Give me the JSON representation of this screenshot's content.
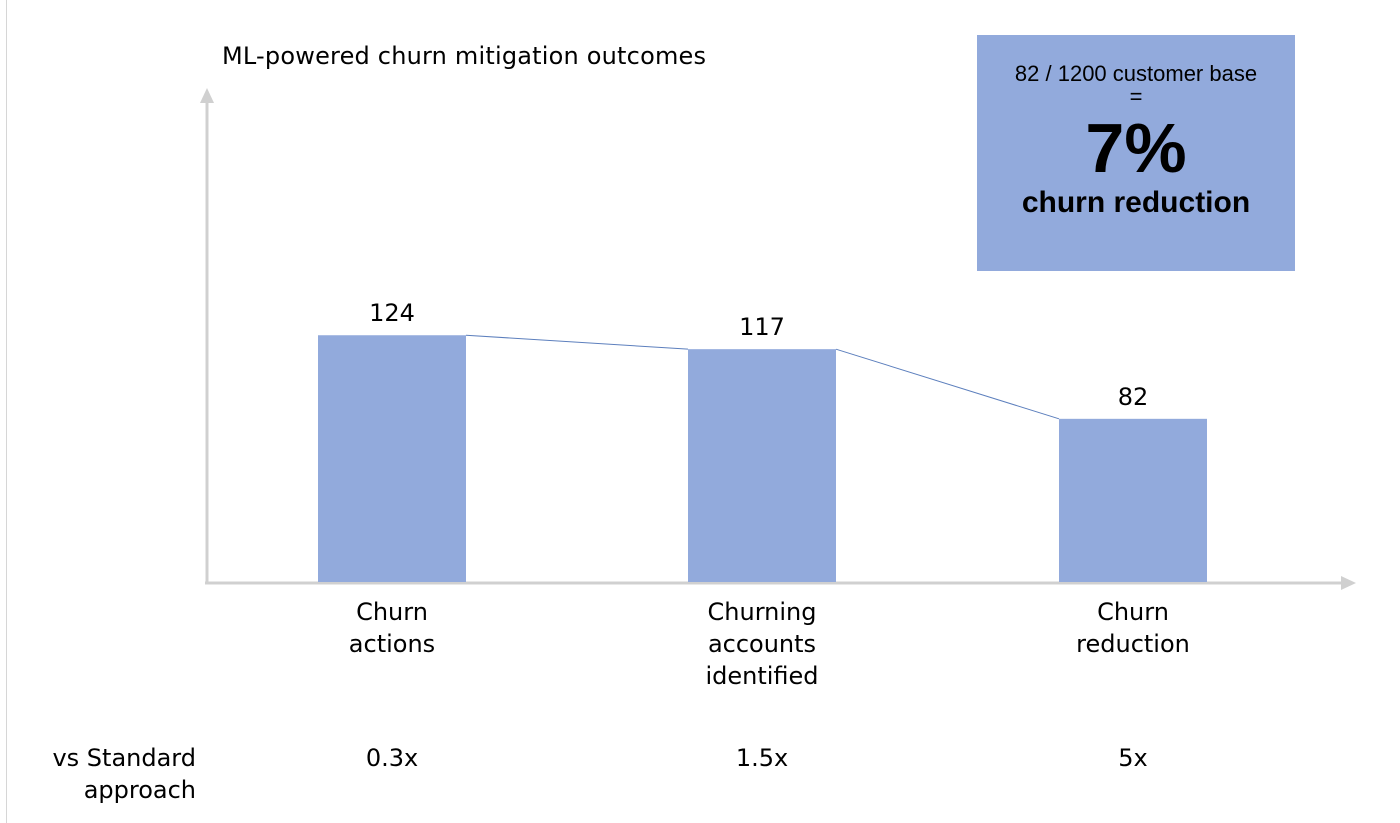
{
  "chart_data": {
    "type": "bar",
    "title": "ML-powered churn mitigation outcomes",
    "categories": [
      "Churn\nactions",
      "Churning\naccounts\nidentified",
      "Churn\nreduction"
    ],
    "values": [
      124,
      117,
      82
    ],
    "data_labels": [
      "124",
      "117",
      "82"
    ],
    "ylim": [
      0,
      200
    ],
    "grid": false,
    "connector_lines": true,
    "bar_color": "#92aadc",
    "connector_color": "#5c7fbd"
  },
  "comparison": {
    "label": "vs Standard\napproach",
    "values": [
      "0.3x",
      "1.5x",
      "5x"
    ]
  },
  "callout": {
    "formula": "82 / 1200 customer base",
    "equals": "=",
    "percent": "7%",
    "caption": "churn reduction",
    "color": "#92aadc"
  }
}
